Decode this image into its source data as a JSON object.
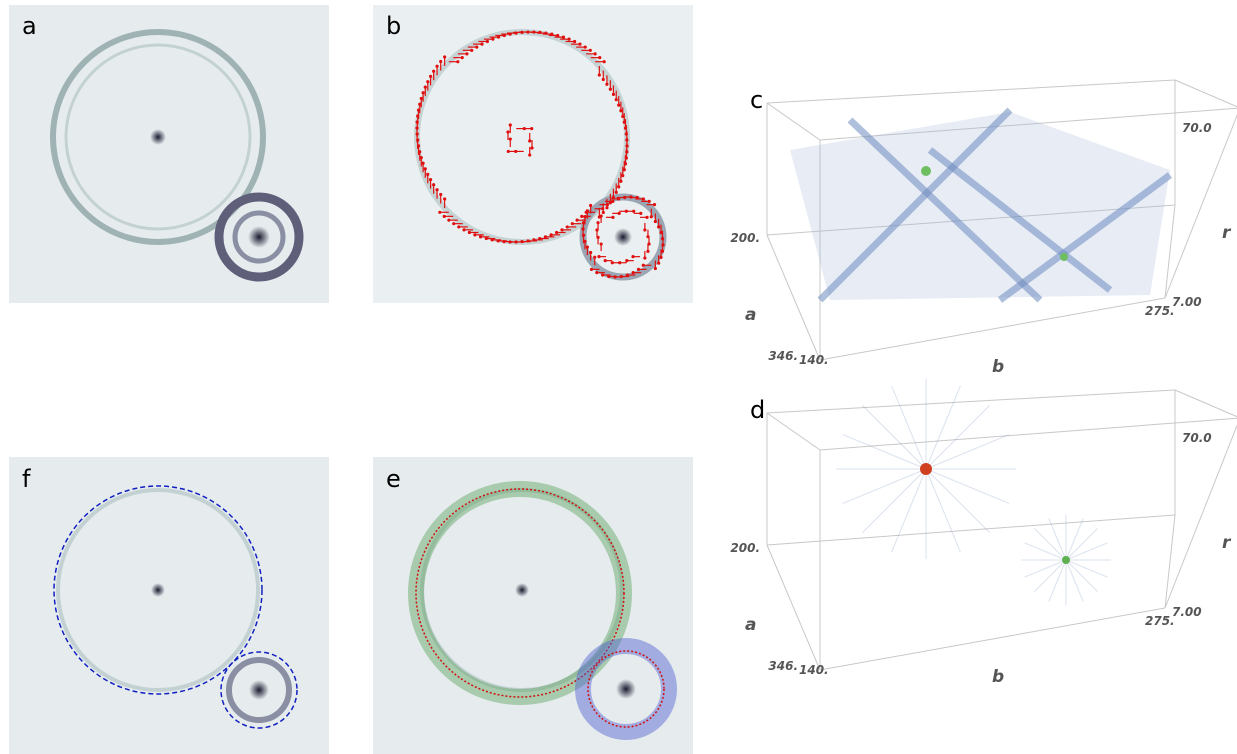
{
  "panels": [
    {
      "label": "a"
    },
    {
      "label": "b"
    },
    {
      "label": "f"
    },
    {
      "label": "e"
    }
  ],
  "volumes": [
    {
      "label": "c",
      "a_label": "a",
      "b_label": "b",
      "r_label": "r",
      "a_ticks": [
        "200.",
        "346."
      ],
      "b_ticks": [
        "140.",
        "275."
      ],
      "r_ticks": [
        "7.00",
        "70.0"
      ]
    },
    {
      "label": "d",
      "a_label": "a",
      "b_label": "b",
      "r_label": "r",
      "a_ticks": [
        "200.",
        "346."
      ],
      "b_ticks": [
        "140.",
        "275."
      ],
      "r_ticks": [
        "7.00",
        "70.0"
      ]
    }
  ]
}
